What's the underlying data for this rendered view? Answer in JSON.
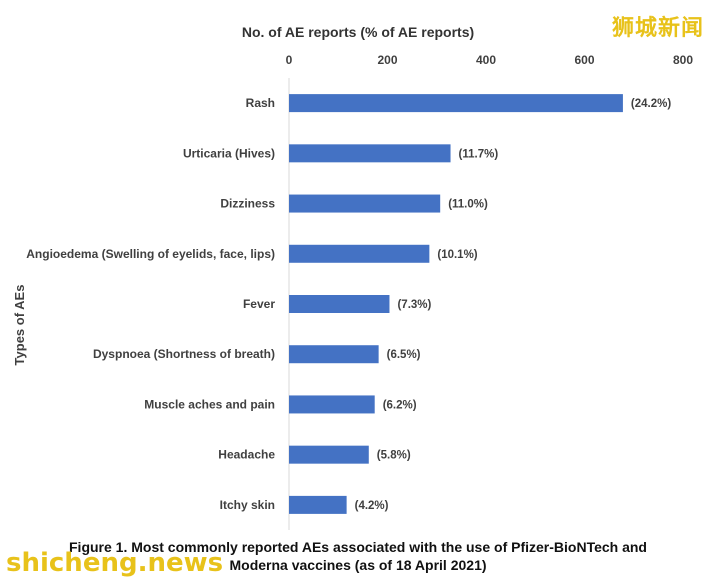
{
  "chart_data": {
    "type": "bar",
    "orientation": "horizontal",
    "title": "No. of AE reports (% of AE reports)",
    "ylabel": "Types of AEs",
    "xlim": [
      0,
      800
    ],
    "xticks": [
      0,
      200,
      400,
      600,
      800
    ],
    "categories": [
      "Rash",
      "Urticaria (Hives)",
      "Dizziness",
      "Angioedema (Swelling of eyelids, face, lips)",
      "Fever",
      "Dyspnoea (Shortness of breath)",
      "Muscle aches and pain",
      "Headache",
      "Itchy skin"
    ],
    "values": [
      678,
      328,
      307,
      285,
      204,
      182,
      174,
      162,
      117
    ],
    "data_labels": [
      "(24.2%)",
      "(11.7%)",
      "(11.0%)",
      "(10.1%)",
      "(7.3%)",
      "(6.5%)",
      "(6.2%)",
      "(5.8%)",
      "(4.2%)"
    ],
    "bar_color": "#4472c4",
    "grid": false,
    "legend": "none"
  },
  "caption": {
    "line1": "Figure 1. Most commonly reported AEs associated with the use of Pfizer-BioNTech and",
    "line2": "Moderna vaccines (as of 18 April 2021)"
  },
  "watermarks": {
    "top_right": "狮城新闻",
    "bottom_left": "shicheng.news",
    "color": "#e8c21a"
  }
}
